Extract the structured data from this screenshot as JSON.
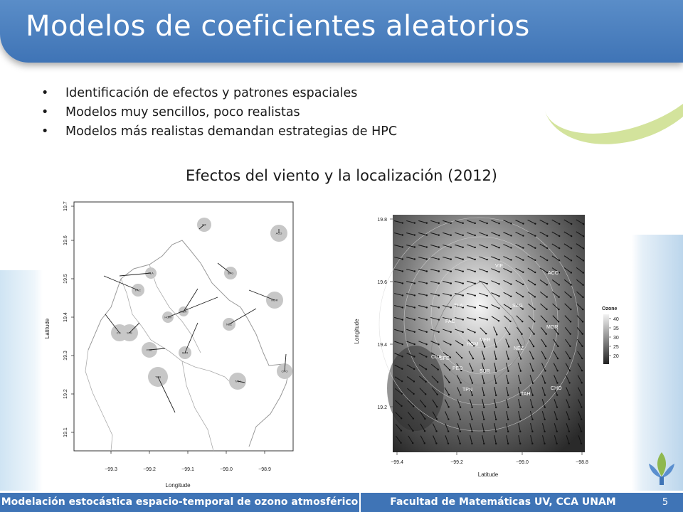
{
  "header": {
    "title": "Modelos de coeficientes aleatorios"
  },
  "bullets": [
    "Identificación de efectos y patrones espaciales",
    "Modelos muy sencillos, poco realistas",
    "Modelos más realistas demandan estrategias de HPC"
  ],
  "figure_title": "Efectos del viento y la localización (2012)",
  "left_plot": {
    "xlabel": "Longitude",
    "ylabel": "Latitude",
    "xticks": [
      "−99.3",
      "−99.2",
      "−99.1",
      "−99.0",
      "−98.9"
    ],
    "yticks": [
      "19.1",
      "19.2",
      "19.3",
      "19.4",
      "19.5",
      "19.6",
      "19.7"
    ],
    "stations": [
      "VIF",
      "ACO",
      "TLA",
      "SAG",
      "FAC",
      "MOR",
      "MER",
      "HGM",
      "NEZ",
      "CUA",
      "SFE",
      "PED",
      "SUR",
      "TPN",
      "TAH",
      "CHO"
    ]
  },
  "right_plot": {
    "xlabel": "Latitude",
    "ylabel": "Longitude",
    "xticks": [
      "−99.4",
      "−99.2",
      "−99.0",
      "−98.8"
    ],
    "yticks": [
      "19.2",
      "19.4",
      "19.6",
      "19.8"
    ],
    "legend_title": "Ozone",
    "legend_values": [
      "40",
      "35",
      "30",
      "25",
      "20"
    ],
    "stations": [
      "VIF",
      "ACO",
      "TLA",
      "SAG",
      "FAC",
      "MOR",
      "MER",
      "HGM",
      "NEZ",
      "CUA",
      "SFE",
      "PED",
      "SUR",
      "TPN",
      "TAH",
      "CHO"
    ]
  },
  "footer": {
    "left": "Modelación estocástica espacio-temporal de ozono atmosférico",
    "right": "Facultad de Matemáticas UV, CCA UNAM",
    "page": "5"
  }
}
